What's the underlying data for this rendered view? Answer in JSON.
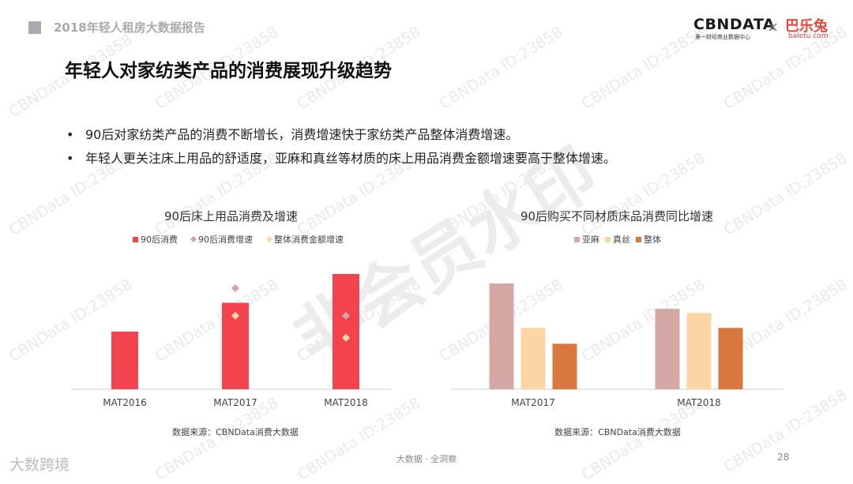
{
  "header": {
    "report_title": "2018年轻人租房大数据报告",
    "logo_cbn": "CBNDATA",
    "logo_cbn_sub": "第一财经商业数据中心",
    "logo_separator": "×",
    "logo_baletu": "巴乐兔",
    "logo_baletu_sub": "baletu.com"
  },
  "slide": {
    "heading": "年轻人对家纺类产品的消费展现升级趋势",
    "bullets": [
      "90后对家纺类产品的消费不断增长，消费增速快于家纺类产品整体消费增速。",
      "年轻人更关注床上用品的舒适度，亚麻和真丝等材质的床上用品消费金额增速要高于整体增速。"
    ],
    "bullet_symbol": "•"
  },
  "chart_data": [
    {
      "type": "bar",
      "title": "90后床上用品消费及增速",
      "categories": [
        "MAT2016",
        "MAT2017",
        "MAT2018"
      ],
      "series": [
        {
          "name": "90后消费",
          "kind": "bar",
          "color": "#f2434f",
          "values": [
            1.0,
            1.5,
            2.0
          ]
        },
        {
          "name": "90后消费增速",
          "kind": "marker",
          "color": "#d4a5a2",
          "values": [
            null,
            0.55,
            0.4
          ]
        },
        {
          "name": "整体消费金额增速",
          "kind": "marker",
          "color": "#fbd9a8",
          "values": [
            null,
            0.4,
            0.28
          ]
        }
      ],
      "legend_position": "top",
      "source": "数据来源：CBNData消费大数据"
    },
    {
      "type": "bar",
      "title": "90后购买不同材质床品消费同比增速",
      "categories": [
        "MAT2017",
        "MAT2018"
      ],
      "series": [
        {
          "name": "亚麻",
          "color": "#d5a8a6",
          "values": [
            1.0,
            0.76
          ]
        },
        {
          "name": "真丝",
          "color": "#fcd5a5",
          "values": [
            0.58,
            0.72
          ]
        },
        {
          "name": "整体",
          "color": "#d9783e",
          "values": [
            0.43,
            0.58
          ]
        }
      ],
      "legend_position": "top",
      "source": "数据来源：CBNData消费大数据"
    }
  ],
  "watermark": {
    "text": "CBNData ID:23858",
    "stamp": "非会员水印"
  },
  "footer": {
    "logo": "大数跨境",
    "center": "大数据 · 全洞察",
    "page_number": "28"
  }
}
